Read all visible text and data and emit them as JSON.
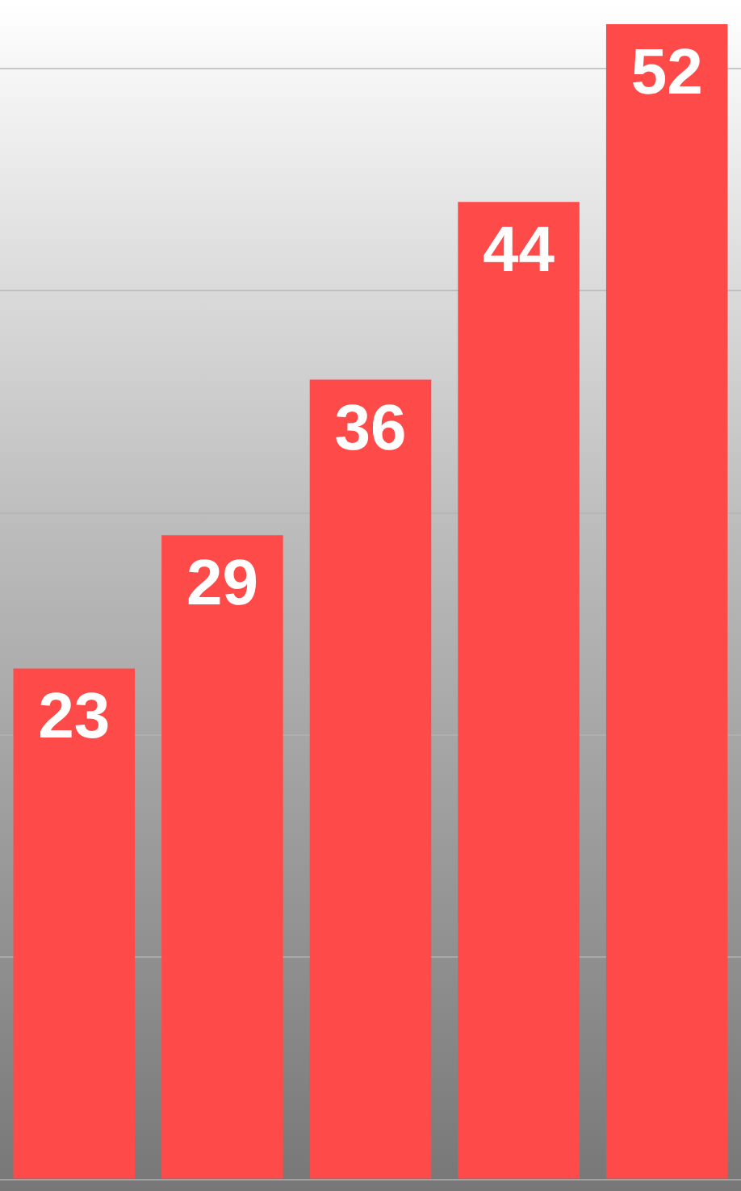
{
  "chart_data": {
    "type": "bar",
    "categories": [
      null,
      null,
      null,
      null,
      null
    ],
    "values": [
      23,
      29,
      36,
      44,
      52
    ],
    "color": "#ff4a4a",
    "yticks": [
      {
        "value": 0,
        "label": null
      },
      {
        "value": 10,
        "label": null
      },
      {
        "value": 20,
        "label": null
      },
      {
        "value": 30,
        "label": null
      },
      {
        "value": 40,
        "label": null
      },
      {
        "value": 50,
        "label": null
      }
    ],
    "grid": "y",
    "data_labels": true
  }
}
